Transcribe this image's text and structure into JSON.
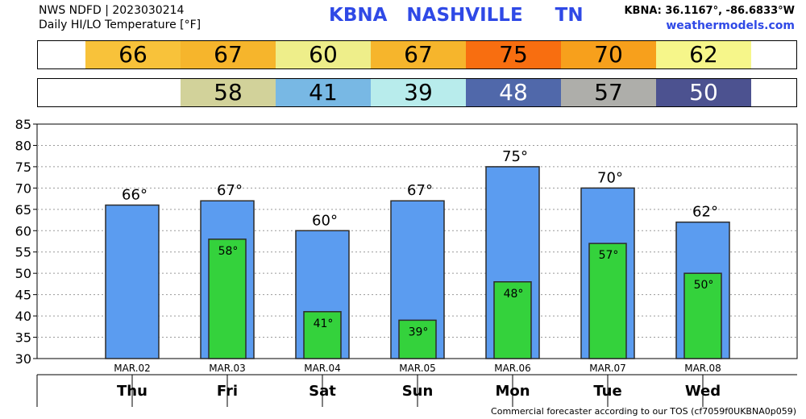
{
  "header": {
    "product": "NWS NDFD | 2023030214",
    "subtitle": "Daily HI/LO Temperature [°F]",
    "station": "KBNA",
    "city": "NASHVILLE",
    "state": "TN",
    "coords": "KBNA: 36.1167°, -86.6833°W",
    "site": "weathermodels.com"
  },
  "footer": {
    "note": "Commercial forecaster according to our TOS (cf7059f0UKBNA0p059)"
  },
  "hi_strip": [
    {
      "text": "66",
      "color": "#f8c23a",
      "text_color": "#000000"
    },
    {
      "text": "67",
      "color": "#f6b52c",
      "text_color": "#000000"
    },
    {
      "text": "60",
      "color": "#eeee8a",
      "text_color": "#000000"
    },
    {
      "text": "67",
      "color": "#f6b52c",
      "text_color": "#000000"
    },
    {
      "text": "75",
      "color": "#f86e10",
      "text_color": "#000000"
    },
    {
      "text": "70",
      "color": "#f7a01c",
      "text_color": "#000000"
    },
    {
      "text": "62",
      "color": "#f6f68a",
      "text_color": "#000000"
    }
  ],
  "lo_strip": [
    {
      "text": "",
      "color": "#ffffff",
      "text_color": "#000000"
    },
    {
      "text": "58",
      "color": "#d2d29a",
      "text_color": "#000000"
    },
    {
      "text": "41",
      "color": "#78b8e4",
      "text_color": "#000000"
    },
    {
      "text": "39",
      "color": "#b8ecec",
      "text_color": "#000000"
    },
    {
      "text": "48",
      "color": "#5068aa",
      "text_color": "#ffffff"
    },
    {
      "text": "57",
      "color": "#aeaeaa",
      "text_color": "#000000"
    },
    {
      "text": "50",
      "color": "#4c5290",
      "text_color": "#ffffff"
    }
  ],
  "colors": {
    "hi_bar": "#5b9cf0",
    "lo_bar": "#34d23c",
    "bar_stroke": "#2c2c2c"
  },
  "chart_data": {
    "type": "bar",
    "categories": [
      "MAR.02",
      "MAR.03",
      "MAR.04",
      "MAR.05",
      "MAR.06",
      "MAR.07",
      "MAR.08"
    ],
    "day_labels": [
      "Thu",
      "Fri",
      "Sat",
      "Sun",
      "Mon",
      "Tue",
      "Wed"
    ],
    "series": [
      {
        "values": [
          66,
          67,
          60,
          67,
          75,
          70,
          62
        ],
        "labels": [
          "66°",
          "67°",
          "60°",
          "67°",
          "75°",
          "70°",
          "62°"
        ]
      },
      {
        "values": [
          null,
          58,
          41,
          39,
          48,
          57,
          50
        ],
        "labels": [
          "",
          "58°",
          "41°",
          "39°",
          "48°",
          "57°",
          "50°"
        ]
      }
    ],
    "ylim": [
      30,
      85
    ],
    "yticks": [
      30,
      35,
      40,
      45,
      50,
      55,
      60,
      65,
      70,
      75,
      80,
      85
    ],
    "grid": true
  }
}
